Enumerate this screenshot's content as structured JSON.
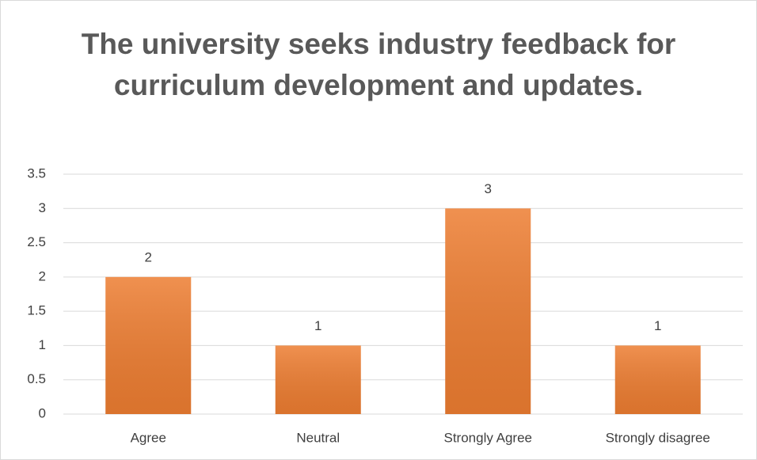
{
  "chart_data": {
    "type": "bar",
    "title": "The university seeks industry feedback for curriculum development and updates.",
    "categories": [
      "Agree",
      "Neutral",
      "Strongly Agree",
      "Strongly disagree"
    ],
    "values": [
      2,
      1,
      3,
      1
    ],
    "color": "#ed7d31",
    "ylim": [
      0,
      3.5
    ],
    "yticks": [
      0,
      0.5,
      1,
      1.5,
      2,
      2.5,
      3,
      3.5
    ],
    "grid": true
  }
}
